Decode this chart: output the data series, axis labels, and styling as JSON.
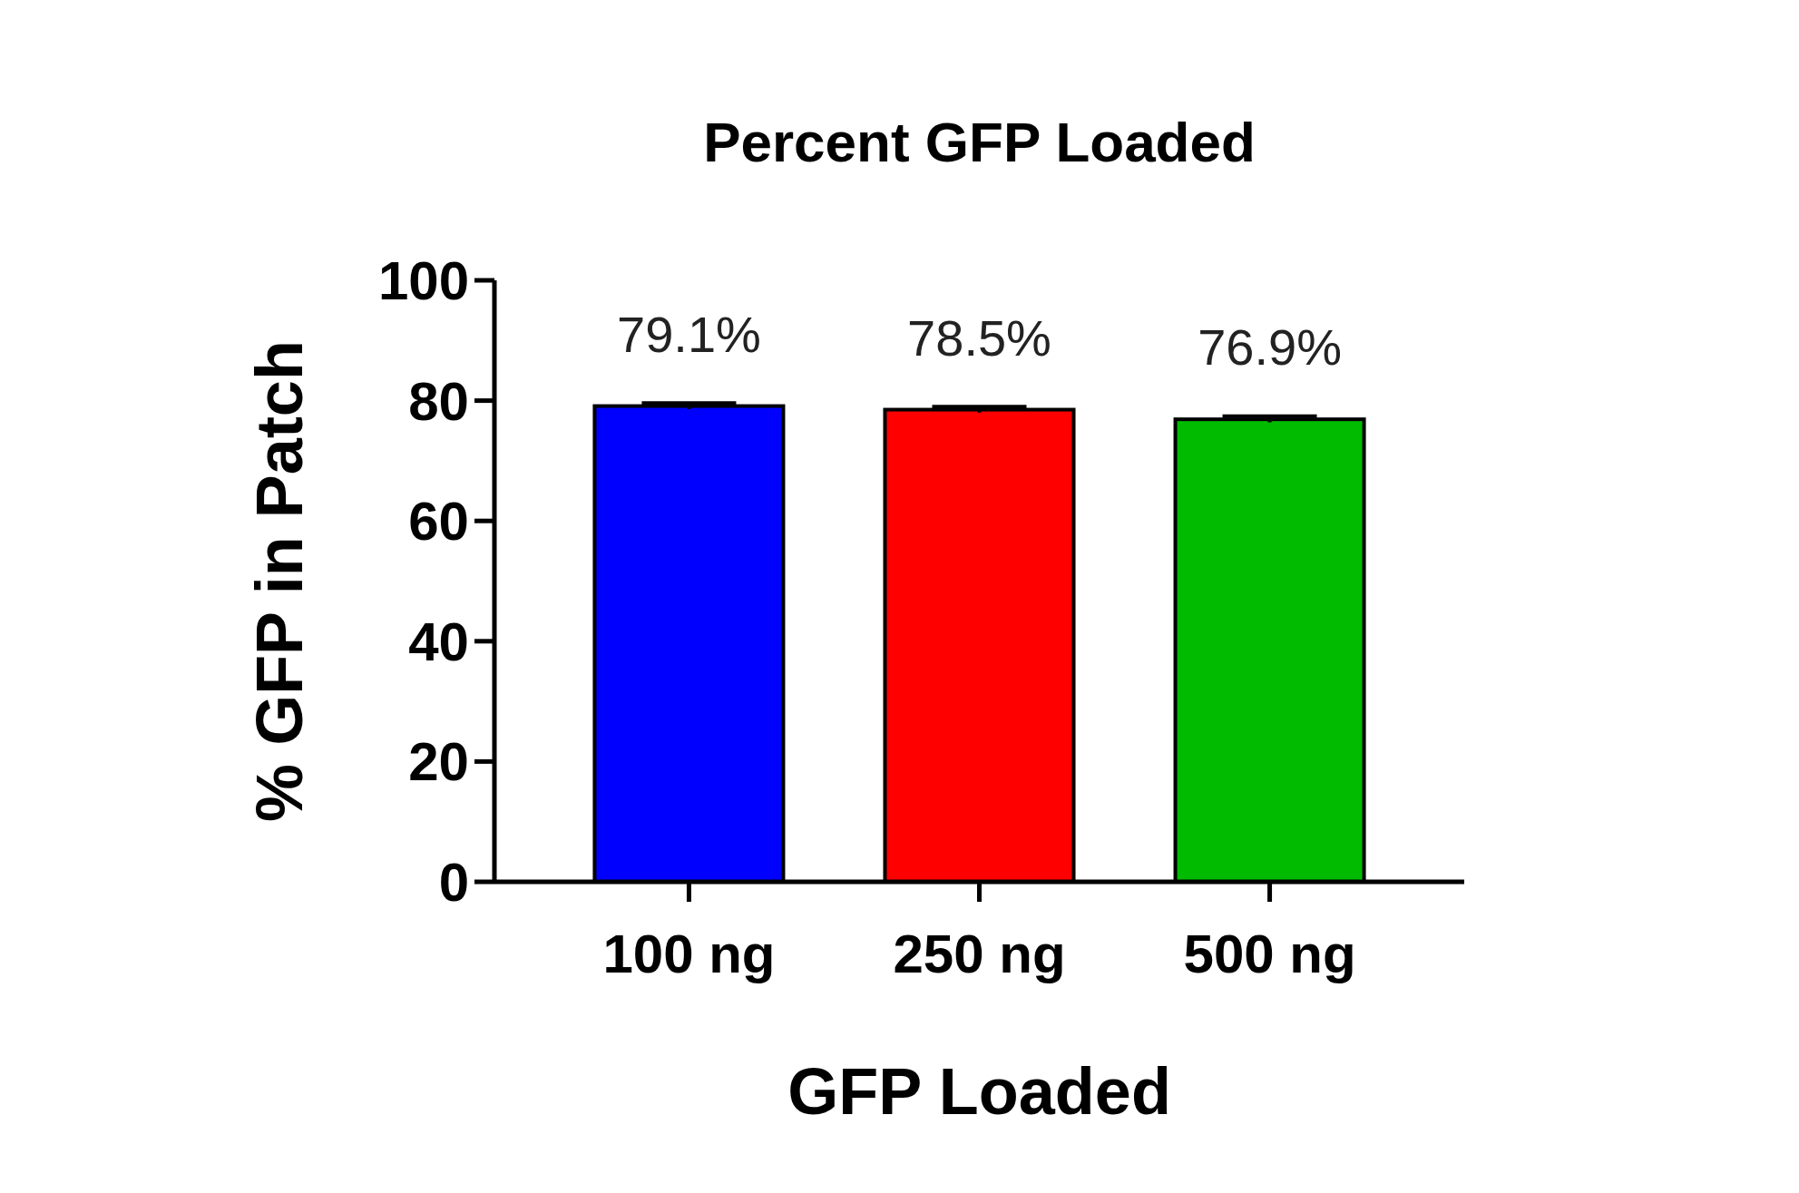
{
  "chart_data": {
    "type": "bar",
    "title": "Percent GFP Loaded",
    "xlabel": "GFP Loaded",
    "ylabel": "% GFP in Patch",
    "categories": [
      "100 ng",
      "250 ng",
      "500 ng"
    ],
    "values": [
      79.1,
      78.5,
      76.9
    ],
    "colors": [
      "#0000ff",
      "#ff0000",
      "#00bb00"
    ],
    "errors": [
      0.5,
      0.5,
      0.5
    ],
    "value_labels": [
      "79.1%",
      "78.5%",
      "76.9%"
    ],
    "ylim": [
      0,
      100
    ],
    "yticks": [
      0,
      20,
      40,
      60,
      80,
      100
    ],
    "grid": false
  }
}
